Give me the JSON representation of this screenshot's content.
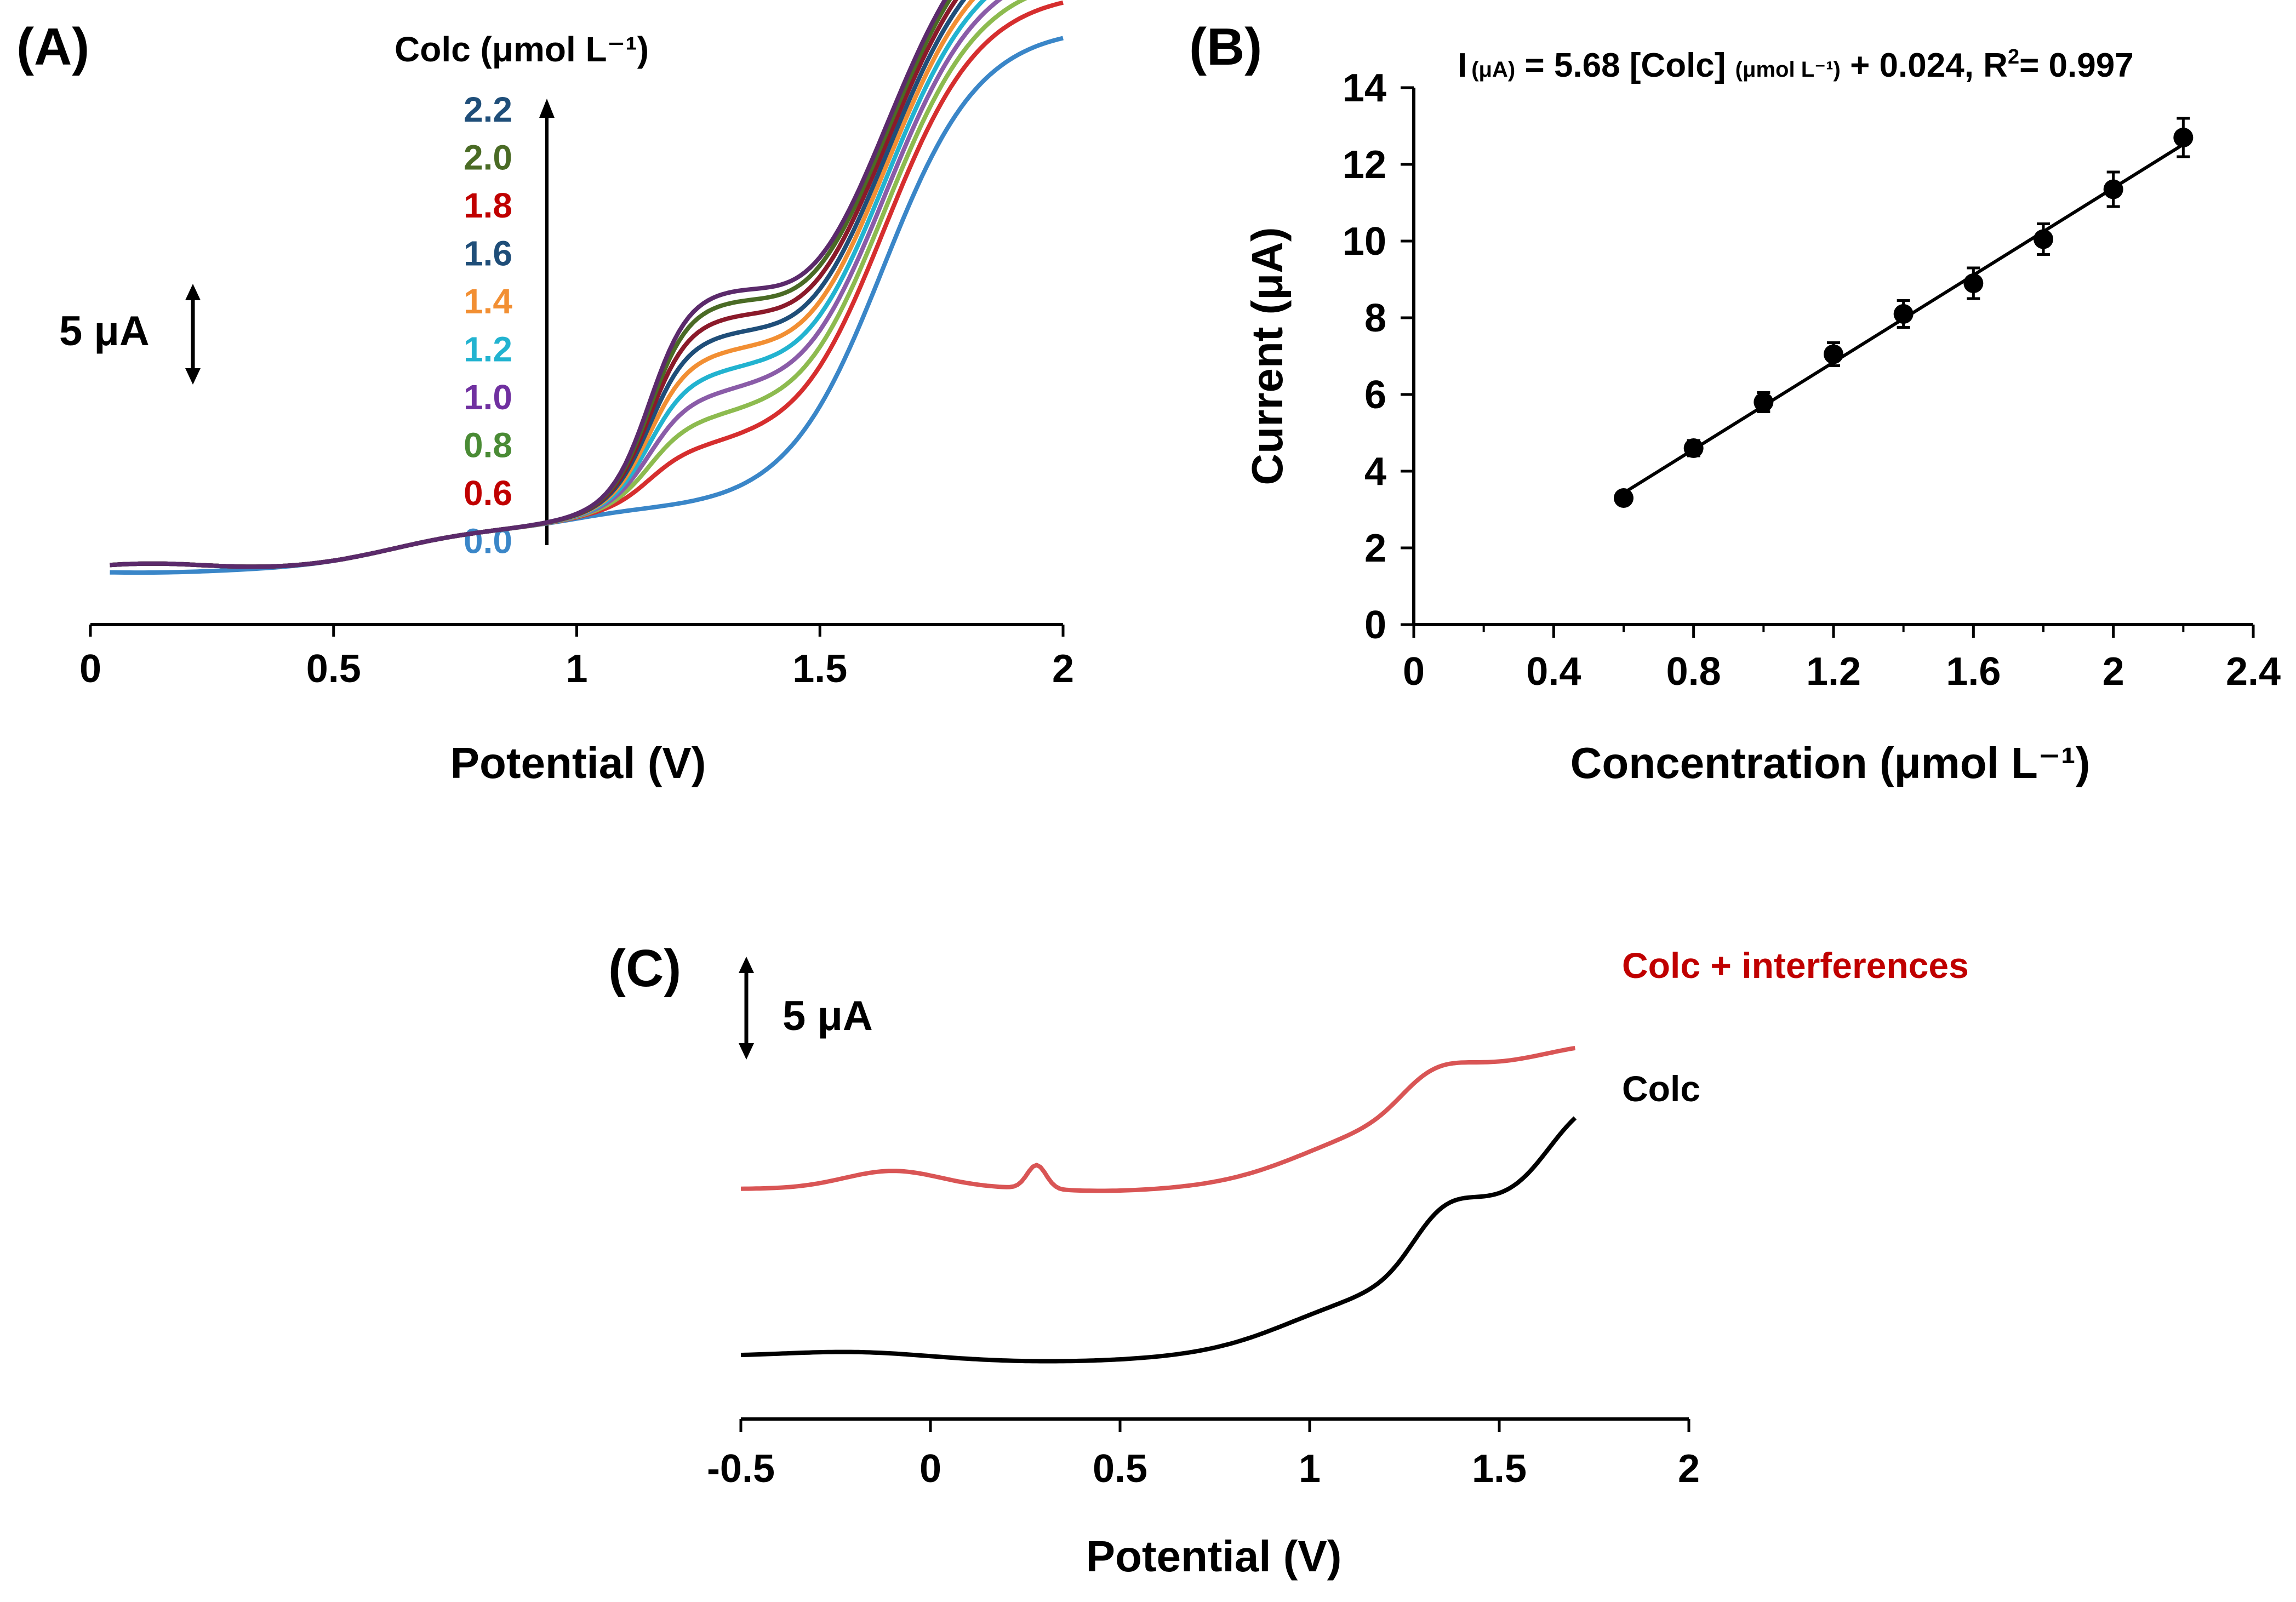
{
  "chart_data": [
    {
      "id": "A",
      "type": "line",
      "panel_label": "(A)",
      "xlabel": "Potential (V)",
      "xlim": [
        0,
        2
      ],
      "xticks": [
        "0",
        "0.5",
        "1",
        "1.5",
        "2"
      ],
      "legend_title": "Colc (μmol L⁻¹)",
      "scale_bar": "5 μA",
      "series": [
        {
          "name": "0.0",
          "color": "#3a86c8",
          "peak": 0.0
        },
        {
          "name": "0.6",
          "color": "#d62e2e",
          "peak": 2.9
        },
        {
          "name": "0.8",
          "color": "#8dbb4f",
          "peak": 4.3
        },
        {
          "name": "1.0",
          "color": "#8a5ca8",
          "peak": 5.5
        },
        {
          "name": "1.2",
          "color": "#22b3d0",
          "peak": 6.6
        },
        {
          "name": "1.4",
          "color": "#f28f33",
          "peak": 7.6
        },
        {
          "name": "1.6",
          "color": "#1f4e79",
          "peak": 8.5
        },
        {
          "name": "1.8",
          "color": "#8b1a2a",
          "peak": 9.4
        },
        {
          "name": "2.0",
          "color": "#4a6b25",
          "peak": 10.2
        },
        {
          "name": "2.2",
          "color": "#5b2a6b",
          "peak": 10.8
        }
      ],
      "legend_colors": [
        "#1f4e79",
        "#4a6b25",
        "#c00000",
        "#1f4e79",
        "#f28f33",
        "#22b3d0",
        "#7030a0",
        "#4a8b35",
        "#c00000",
        "#3a86c8"
      ]
    },
    {
      "id": "B",
      "type": "scatter",
      "panel_label": "(B)",
      "title": "I (μA) = 5.68 [Colc] (μmol L⁻¹) + 0.024,  R² = 0.997",
      "equation": {
        "i": "I",
        "i_unit": "(μA)",
        "rhs1": " = 5.68 [Colc] ",
        "conc_unit": "(μmol L⁻¹)",
        "rhs2": " + 0.024,  R",
        "r_sup": "2",
        "r_val": "= 0.997"
      },
      "xlabel": "Concentration (μmol L⁻¹)",
      "ylabel": "Current (μA)",
      "xlim": [
        0,
        2.4
      ],
      "ylim": [
        0,
        14
      ],
      "xticks": [
        "0",
        "0.4",
        "0.8",
        "1.2",
        "1.6",
        "2",
        "2.4"
      ],
      "yticks": [
        "0",
        "2",
        "4",
        "6",
        "8",
        "10",
        "12",
        "14"
      ],
      "x": [
        0.6,
        0.8,
        1.0,
        1.2,
        1.4,
        1.6,
        1.8,
        2.0,
        2.2
      ],
      "y": [
        3.3,
        4.6,
        5.8,
        7.05,
        8.1,
        8.9,
        10.05,
        11.35,
        12.7
      ],
      "error": [
        0.15,
        0.2,
        0.25,
        0.3,
        0.35,
        0.4,
        0.4,
        0.45,
        0.5
      ],
      "fit": {
        "slope": 5.68,
        "intercept": 0.024
      }
    },
    {
      "id": "C",
      "type": "line",
      "panel_label": "(C)",
      "xlabel": "Potential (V)",
      "xlim": [
        -0.5,
        2
      ],
      "xticks": [
        "-0.5",
        "0",
        "0.5",
        "1",
        "1.5",
        "2"
      ],
      "scale_bar": "5 μA",
      "series": [
        {
          "name": "Colc + interferences",
          "color": "#d95555"
        },
        {
          "name": "Colc",
          "color": "#000000"
        }
      ],
      "label_colors": [
        "#c00000",
        "#000000"
      ]
    }
  ]
}
